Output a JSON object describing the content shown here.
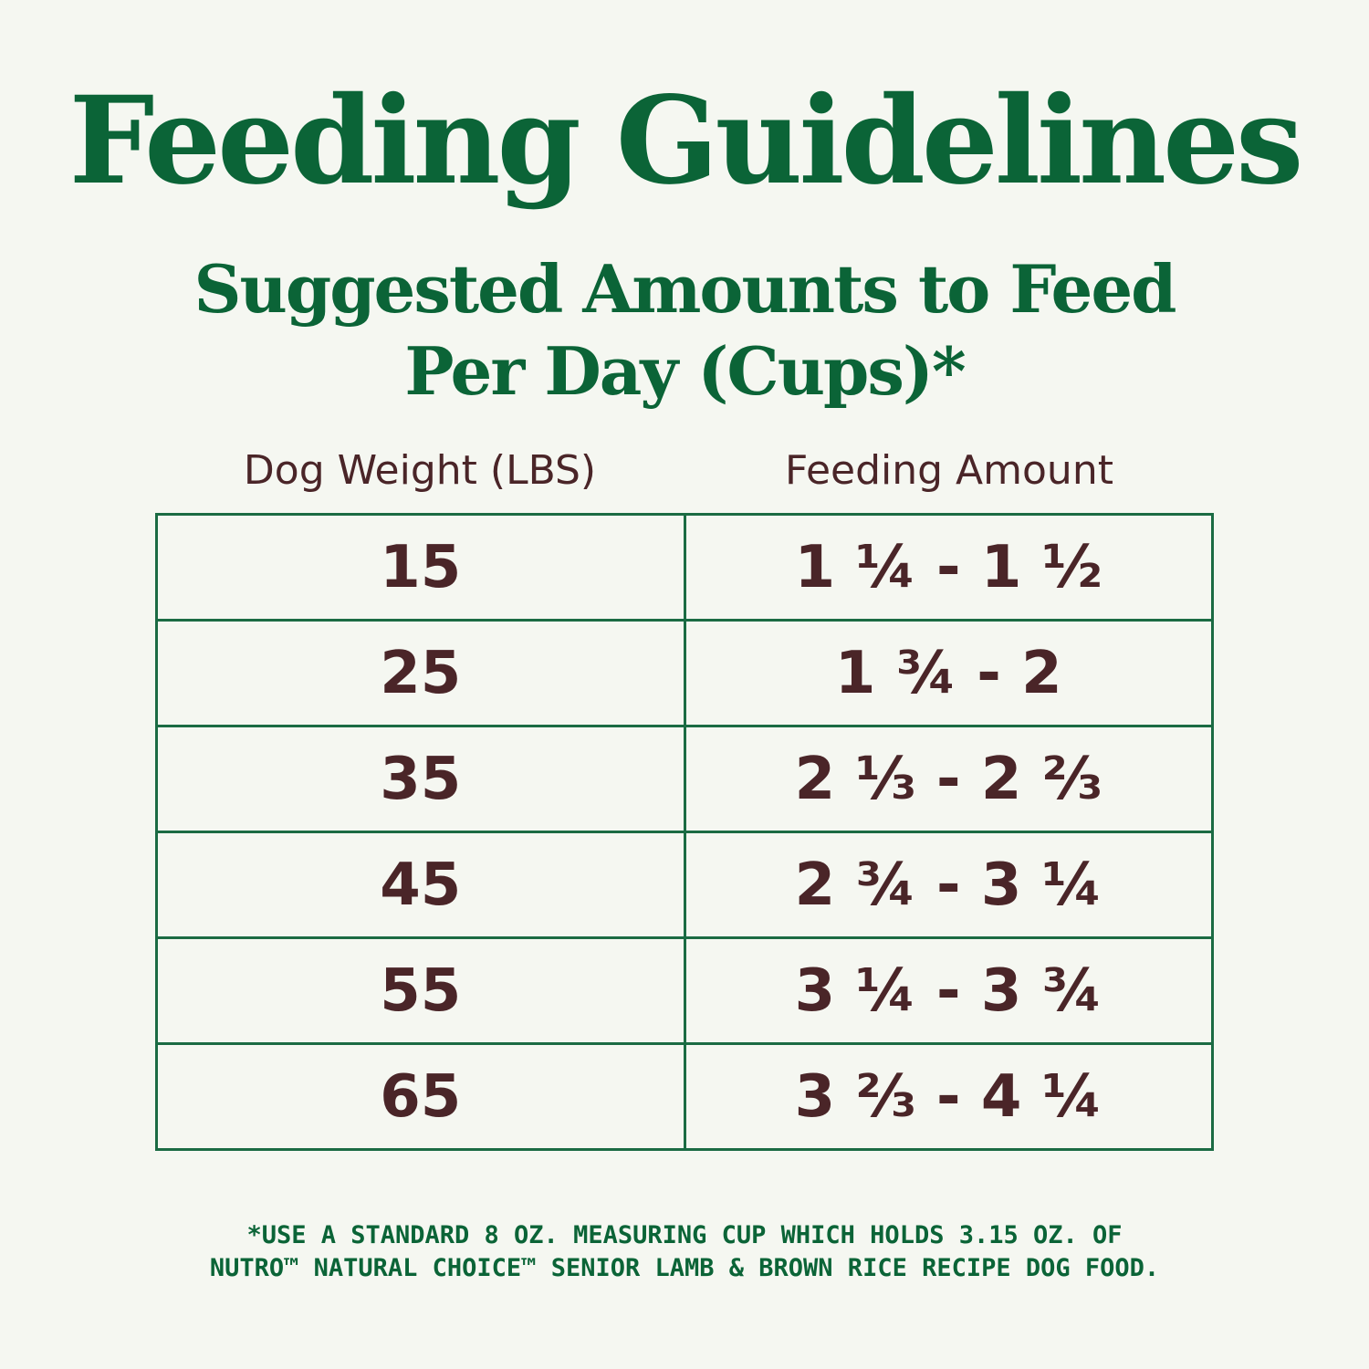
{
  "title": "Feeding Guidelines",
  "subtitle_line1": "Suggested Amounts to Feed",
  "subtitle_line2": "Per Day (Cups)*",
  "table": {
    "headers": [
      "Dog Weight (LBS)",
      "Feeding Amount"
    ],
    "rows": [
      [
        "15",
        "1 ¼ - 1 ½"
      ],
      [
        "25",
        "1 ¾ - 2"
      ],
      [
        "35",
        "2 ⅓ - 2 ⅔"
      ],
      [
        "45",
        "2 ¾ - 3 ¼"
      ],
      [
        "55",
        "3 ¼ - 3 ¾"
      ],
      [
        "65",
        "3 ⅔ - 4 ¼"
      ]
    ]
  },
  "footnote_line1": "*USE A STANDARD 8 OZ. MEASURING CUP WHICH HOLDS 3.15 OZ. OF",
  "footnote_line2": "NUTRO™ NATURAL CHOICE™ SENIOR LAMB & BROWN RICE RECIPE DOG FOOD.",
  "colors": {
    "green": "#0b6437",
    "brown": "#4a2528",
    "background": "#f5f7f1"
  }
}
